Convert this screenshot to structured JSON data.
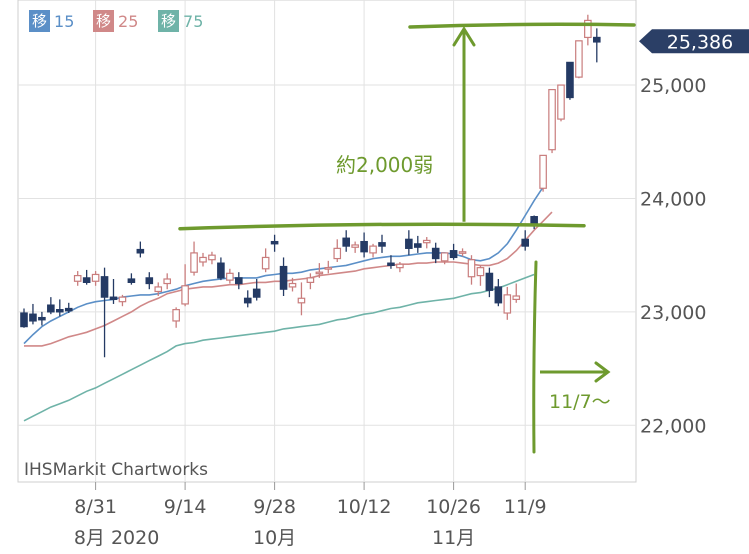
{
  "chart_data": {
    "type": "candlestick",
    "title": "",
    "legend": [
      {
        "label": "移",
        "value": "15",
        "color": "#5b8fc7"
      },
      {
        "label": "移",
        "value": "25",
        "color": "#d08888"
      },
      {
        "label": "移",
        "value": "75",
        "color": "#6fb3a8"
      }
    ],
    "y_ticks": [
      "25,000",
      "24,000",
      "23,000",
      "22,000"
    ],
    "y_tick_values": [
      25000,
      24000,
      23000,
      22000
    ],
    "ylim": [
      21500,
      25750
    ],
    "x_ticks": [
      {
        "label": "8/31",
        "sub": "8月 2020",
        "index": 8
      },
      {
        "label": "9/14",
        "sub": "",
        "index": 18
      },
      {
        "label": "9/28",
        "sub": "10月",
        "index": 28
      },
      {
        "label": "10/12",
        "sub": "",
        "index": 38
      },
      {
        "label": "10/26",
        "sub": "11月",
        "index": 48
      },
      {
        "label": "11/9",
        "sub": "",
        "index": 56
      }
    ],
    "last_price_label": "25,386",
    "last_price": 25386,
    "last_price_color": "#2b3f66",
    "watermark": "IHSMarkit Chartworks",
    "annotations": {
      "range_text": "約2,000弱",
      "date_text": "11/7～",
      "color": "#6e9a2e"
    },
    "candles": [
      [
        22990,
        23030,
        22870,
        22860
      ],
      [
        22980,
        23070,
        22920,
        22890
      ],
      [
        22950,
        23000,
        22930,
        22880
      ],
      [
        23060,
        23130,
        23000,
        22980
      ],
      [
        23020,
        23110,
        23000,
        22960
      ],
      [
        23030,
        23080,
        23010,
        22990
      ],
      [
        23270,
        23360,
        23320,
        23230
      ],
      [
        23300,
        23370,
        23260,
        23240
      ],
      [
        23270,
        23360,
        23330,
        23230
      ],
      [
        23310,
        23390,
        23130,
        22600
      ],
      [
        23130,
        23290,
        23110,
        23070
      ],
      [
        23090,
        23150,
        23130,
        23050
      ],
      [
        23290,
        23340,
        23260,
        23240
      ],
      [
        23550,
        23620,
        23520,
        23480
      ],
      [
        23300,
        23350,
        23250,
        23200
      ],
      [
        23180,
        23260,
        23220,
        23140
      ],
      [
        23250,
        23340,
        23290,
        23200
      ],
      [
        22920,
        23040,
        23020,
        22860
      ],
      [
        23070,
        23420,
        23230,
        23050
      ],
      [
        23350,
        23620,
        23520,
        23320
      ],
      [
        23440,
        23520,
        23480,
        23400
      ],
      [
        23460,
        23530,
        23500,
        23420
      ],
      [
        23430,
        23480,
        23300,
        23280
      ],
      [
        23280,
        23380,
        23340,
        23250
      ],
      [
        23300,
        23350,
        23250,
        23200
      ],
      [
        23120,
        23190,
        23080,
        23040
      ],
      [
        23200,
        23290,
        23130,
        23100
      ],
      [
        23380,
        23560,
        23480,
        23350
      ],
      [
        23620,
        23680,
        23600,
        23530
      ],
      [
        23400,
        23480,
        23200,
        23140
      ],
      [
        23220,
        23300,
        23250,
        23180
      ],
      [
        23080,
        23260,
        23120,
        22970
      ],
      [
        23260,
        23340,
        23300,
        23200
      ],
      [
        23340,
        23430,
        23350,
        23300
      ],
      [
        23390,
        23450,
        23390,
        23340
      ],
      [
        23470,
        23640,
        23560,
        23440
      ],
      [
        23650,
        23720,
        23580,
        23530
      ],
      [
        23570,
        23620,
        23590,
        23520
      ],
      [
        23620,
        23700,
        23530,
        23480
      ],
      [
        23520,
        23600,
        23580,
        23480
      ],
      [
        23610,
        23680,
        23580,
        23520
      ],
      [
        23430,
        23500,
        23410,
        23380
      ],
      [
        23390,
        23440,
        23420,
        23350
      ],
      [
        23640,
        23720,
        23560,
        23500
      ],
      [
        23600,
        23670,
        23570,
        23520
      ],
      [
        23610,
        23660,
        23630,
        23560
      ],
      [
        23560,
        23610,
        23470,
        23430
      ],
      [
        23450,
        23520,
        23520,
        23420
      ],
      [
        23540,
        23600,
        23480,
        23460
      ],
      [
        23520,
        23560,
        23530,
        23490
      ],
      [
        23310,
        23500,
        23460,
        23240
      ],
      [
        23320,
        23410,
        23390,
        23230
      ],
      [
        23340,
        23390,
        23190,
        23130
      ],
      [
        23220,
        23290,
        23080,
        23050
      ],
      [
        22990,
        23220,
        23150,
        22930
      ],
      [
        23110,
        23250,
        23140,
        23080
      ],
      [
        23640,
        23720,
        23580,
        23540
      ],
      [
        23840,
        23850,
        23770,
        23730
      ],
      [
        24090,
        24320,
        24380,
        24060
      ],
      [
        24430,
        24600,
        24960,
        24400
      ],
      [
        24700,
        24770,
        25000,
        24680
      ],
      [
        25200,
        25200,
        24890,
        24870
      ],
      [
        25070,
        25230,
        25390,
        25060
      ],
      [
        25420,
        25620,
        25570,
        25350
      ],
      [
        25420,
        25500,
        25380,
        25200
      ]
    ],
    "sma15": [
      22720,
      22800,
      22870,
      22920,
      22960,
      23000,
      23040,
      23070,
      23090,
      23100,
      23110,
      23130,
      23140,
      23150,
      23150,
      23160,
      23180,
      23200,
      23230,
      23250,
      23270,
      23280,
      23290,
      23300,
      23300,
      23300,
      23300,
      23320,
      23330,
      23340,
      23340,
      23350,
      23370,
      23380,
      23390,
      23400,
      23410,
      23430,
      23450,
      23470,
      23480,
      23490,
      23490,
      23500,
      23510,
      23520,
      23520,
      23520,
      23510,
      23490,
      23460,
      23450,
      23470,
      23520,
      23600,
      23720,
      23850,
      23980,
      24100
    ],
    "sma25": [
      22700,
      22700,
      22700,
      22720,
      22750,
      22780,
      22800,
      22820,
      22850,
      22880,
      22920,
      22960,
      23000,
      23050,
      23090,
      23120,
      23160,
      23180,
      23200,
      23210,
      23220,
      23220,
      23230,
      23240,
      23240,
      23250,
      23260,
      23260,
      23270,
      23270,
      23280,
      23290,
      23300,
      23320,
      23330,
      23340,
      23350,
      23360,
      23380,
      23390,
      23400,
      23410,
      23420,
      23420,
      23430,
      23430,
      23440,
      23440,
      23440,
      23430,
      23420,
      23410,
      23410,
      23430,
      23470,
      23540,
      23630,
      23720,
      23800,
      23880
    ],
    "sma75": [
      22040,
      22080,
      22120,
      22160,
      22190,
      22220,
      22260,
      22300,
      22330,
      22370,
      22410,
      22450,
      22490,
      22530,
      22570,
      22610,
      22650,
      22700,
      22720,
      22730,
      22750,
      22760,
      22770,
      22780,
      22790,
      22800,
      22810,
      22820,
      22830,
      22850,
      22860,
      22870,
      22880,
      22890,
      22910,
      22930,
      22940,
      22960,
      22980,
      22990,
      23010,
      23030,
      23040,
      23060,
      23080,
      23090,
      23100,
      23110,
      23120,
      23140,
      23160,
      23170,
      23190,
      23210,
      23240,
      23270,
      23300,
      23330
    ]
  }
}
